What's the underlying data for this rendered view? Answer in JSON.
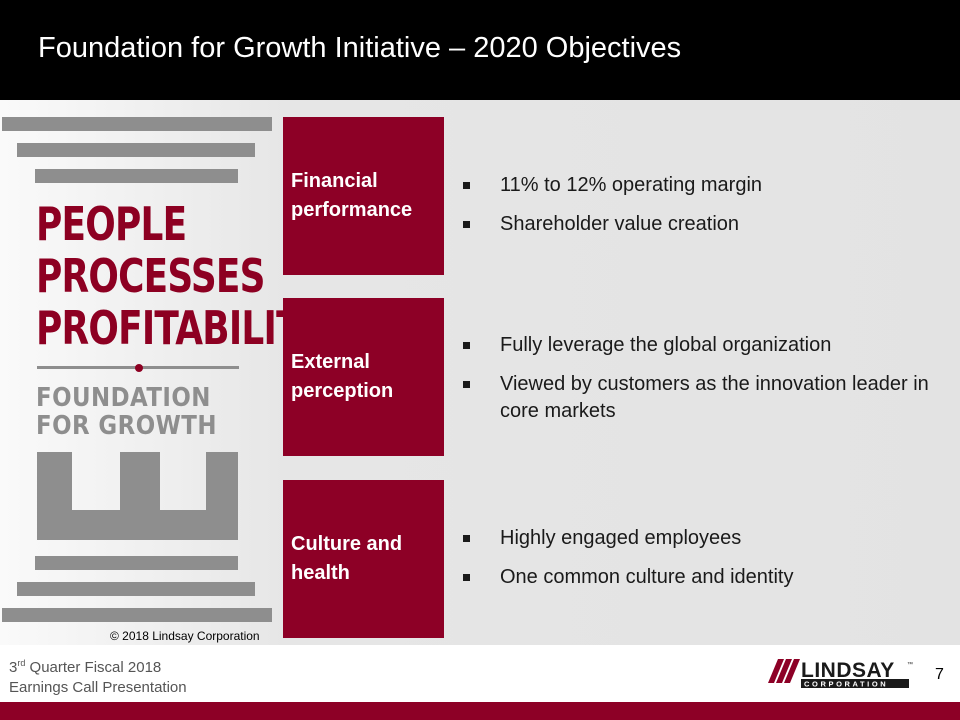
{
  "slide": {
    "title": "Foundation for Growth Initiative – 2020 Objectives",
    "page_number": "7"
  },
  "logo_graphic": {
    "line1": "PEOPLE",
    "line2": "PROCESSES",
    "line3": "PROFITABILITY",
    "subline1": "FOUNDATION",
    "subline2": "FOR GROWTH",
    "copyright": "© 2018 Lindsay Corporation"
  },
  "objectives": [
    {
      "category": "Financial performance",
      "bullets": [
        "11% to 12% operating margin",
        "Shareholder value creation"
      ]
    },
    {
      "category": "External perception",
      "bullets": [
        "Fully leverage the global organization",
        "Viewed by customers as the innovation leader in core markets"
      ]
    },
    {
      "category": "Culture and health",
      "bullets": [
        "Highly engaged employees",
        "One common culture and identity"
      ]
    }
  ],
  "footer": {
    "ordinal_num": "3",
    "ordinal_suffix": "rd",
    "line1_rest": " Quarter Fiscal 2018",
    "line2": "Earnings Call Presentation",
    "company_logo_text": "LINDSAY",
    "company_logo_sub": "CORPORATION",
    "trademark": "™"
  },
  "colors": {
    "accent": "#8d0026",
    "header": "#000000",
    "logo_gray": "#8e8e8e"
  }
}
